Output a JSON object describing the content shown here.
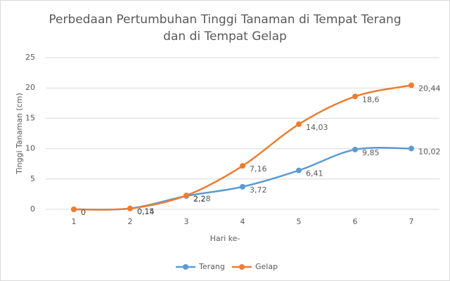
{
  "chart_data": {
    "type": "line",
    "title": [
      "Perbedaan Pertumbuhan Tinggi Tanaman di Tempat Terang",
      "dan di Tempat Gelap"
    ],
    "x_label": "Hari ke-",
    "y_label": "Tinggi Tanaman (cm)",
    "categories": [
      "1",
      "2",
      "3",
      "4",
      "5",
      "6",
      "7"
    ],
    "series": [
      {
        "name": "Terang",
        "color": "#5b9bd5",
        "values": [
          0,
          0.15,
          2.2,
          3.72,
          6.41,
          9.85,
          10.02
        ],
        "value_labels": [
          "0",
          "0,15",
          "2,2",
          "3,72",
          "6,41",
          "9,85",
          "10,02"
        ]
      },
      {
        "name": "Gelap",
        "color": "#ed7d31",
        "values": [
          0,
          0.14,
          2.28,
          7.16,
          14.03,
          18.6,
          20.44
        ],
        "value_labels": [
          "0",
          "0,14",
          "2,28",
          "7,16",
          "14,03",
          "18,6",
          "20,44"
        ]
      }
    ],
    "ylim": [
      0,
      25
    ],
    "yticks": [
      0,
      5,
      10,
      15,
      20,
      25
    ],
    "grid": true,
    "legend": "bottom"
  }
}
